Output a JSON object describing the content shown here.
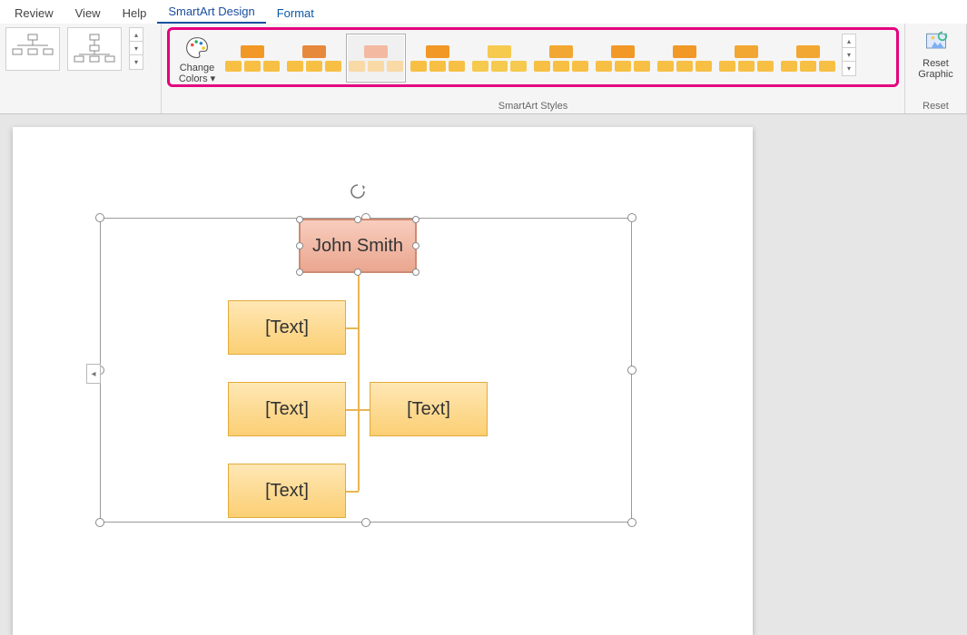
{
  "tabs": {
    "review": "Review",
    "view": "View",
    "help": "Help",
    "smartart_design": "SmartArt Design",
    "format": "Format"
  },
  "ribbon": {
    "change_colors_label": "Change Colors",
    "styles_group_label": "SmartArt Styles",
    "reset_button_label": "Reset Graphic",
    "reset_group_label": "Reset",
    "styles": [
      {
        "big": "#f19827",
        "small": "#f7c044",
        "sel": false
      },
      {
        "big": "#e6893d",
        "small": "#f7c044",
        "sel": false
      },
      {
        "big": "#f3b9a1",
        "small": "#f9d9a6",
        "sel": true
      },
      {
        "big": "#f19827",
        "small": "#f7c044",
        "sel": false
      },
      {
        "big": "#f6c94f",
        "small": "#f6c94f",
        "sel": false
      },
      {
        "big": "#f1a731",
        "small": "#f7c044",
        "sel": false
      },
      {
        "big": "#f19827",
        "small": "#f7c044",
        "sel": false
      },
      {
        "big": "#f19827",
        "small": "#f7c044",
        "sel": false
      },
      {
        "big": "#f1a731",
        "small": "#f7c044",
        "sel": false
      },
      {
        "big": "#f1a731",
        "small": "#f7c044",
        "sel": false
      }
    ]
  },
  "smartart": {
    "top_label": "John Smith",
    "placeholder": "[Text]",
    "colors": {
      "top_fill_from": "#f8cdbd",
      "top_fill_to": "#eaa68f",
      "top_border": "#cd8b74",
      "sub_fill_from": "#ffe7b4",
      "sub_fill_to": "#fbcf74",
      "sub_border": "#e2aa3b",
      "connector": "#e9b552"
    }
  }
}
